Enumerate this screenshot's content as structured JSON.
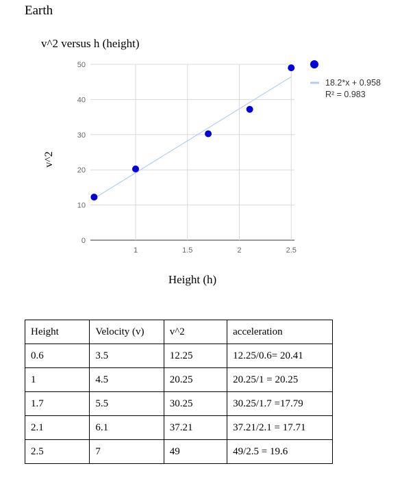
{
  "document": {
    "heading": "Earth"
  },
  "chart_data": {
    "type": "scatter",
    "title": "v^2 versus h (height)",
    "xlabel": "Height (h)",
    "ylabel": "v^2",
    "x_ticks": [
      "1",
      "1.5",
      "2",
      "2.5"
    ],
    "y_ticks": [
      "0",
      "10",
      "20",
      "30",
      "40",
      "50"
    ],
    "xlim": [
      0.6,
      2.5
    ],
    "ylim": [
      0,
      50
    ],
    "grid": true,
    "legend_position": "right",
    "point_color": "#0000dd",
    "trendline_color": "#b3cdf0",
    "points": [
      {
        "x": 0.6,
        "y": 12.25
      },
      {
        "x": 1.0,
        "y": 20.25
      },
      {
        "x": 1.7,
        "y": 30.25
      },
      {
        "x": 2.1,
        "y": 37.21
      },
      {
        "x": 2.5,
        "y": 49
      }
    ],
    "trendline": {
      "slope": 18.2,
      "intercept": 0.958,
      "equation": "18.2*x + 0.958",
      "r2_label": "R² = 0.983"
    }
  },
  "table": {
    "headers": [
      "Height",
      "Velocity (v)",
      "v^2",
      "acceleration"
    ],
    "rows": [
      [
        "0.6",
        "3.5",
        "12.25",
        "12.25/0.6= 20.41"
      ],
      [
        "1",
        "4.5",
        "20.25",
        "20.25/1 = 20.25"
      ],
      [
        "1.7",
        "5.5",
        "30.25",
        "30.25/1.7 =17.79"
      ],
      [
        "2.1",
        "6.1",
        "37.21",
        "37.21/2.1 = 17.71"
      ],
      [
        "2.5",
        "7",
        "49",
        "49/2.5 =  19.6"
      ]
    ]
  }
}
